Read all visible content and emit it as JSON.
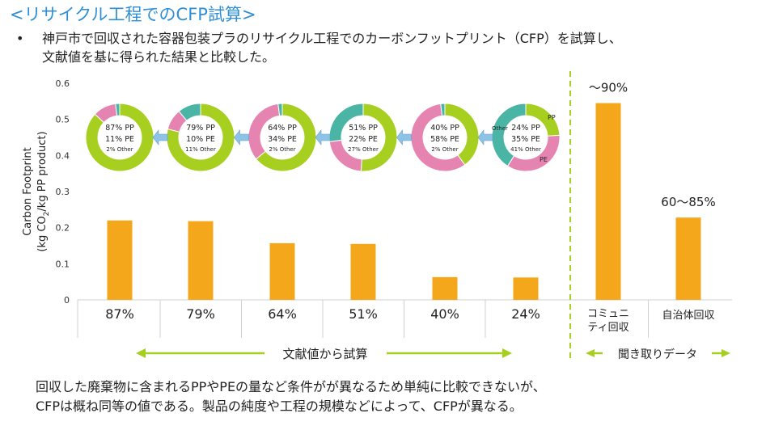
{
  "slide": {
    "title": "<リサイクル工程でのCFP試算>",
    "bullet": "•",
    "intro_line1": "神戸市で回収された容器包装プラのリサイクル工程でのカーボンフットプリント（CFP）を試算し、",
    "intro_line2": "文献値を基に得られた結果と比較した。",
    "conclusion_line1": "回収した廃棄物に含まれるPPやPEの量など条件がが異なるため単純に比較できないが、",
    "conclusion_line2": "CFPは概ね同等の値である。製品の純度や工程の規模などによって、CFPが異なる。"
  },
  "colors": {
    "title": "#2f8fd6",
    "bar": "#f5a71c",
    "pp": "#a6cf1f",
    "pe": "#e684b1",
    "other": "#4ab5a5",
    "arrow_blue": "#8ec3e6",
    "separator": "#a6cf1f",
    "range_arrow": "#a6cf1f"
  },
  "chart_data": {
    "type": "bar",
    "ylabel_line1": "Carbon Footprint",
    "ylabel_line2_prefix": "(kg CO",
    "ylabel_line2_sub": "2",
    "ylabel_line2_suffix": "/kg PP product)",
    "ylim": [
      0,
      0.6
    ],
    "yticks": [
      "0",
      "0.1",
      "0.2",
      "0.3",
      "0.4",
      "0.5",
      "0.6"
    ],
    "categories": [
      "87%",
      "79%",
      "64%",
      "51%",
      "40%",
      "24%",
      "コミュニ\nティ回収",
      "自治体回収"
    ],
    "values": [
      0.22,
      0.218,
      0.157,
      0.155,
      0.063,
      0.062,
      0.545,
      0.228
    ],
    "group_literature_label": "文献値から試算",
    "group_interview_label": "聞き取りデータ",
    "annotations": [
      {
        "category": "コミュニ\nティ回収",
        "text": "～90%"
      },
      {
        "category": "自治体回収",
        "text": "60～85%"
      }
    ],
    "donuts": [
      {
        "pp": 87,
        "pe": 11,
        "other": 2,
        "lines": [
          "87% PP",
          "11% PE",
          "2% Other"
        ]
      },
      {
        "pp": 79,
        "pe": 10,
        "other": 11,
        "lines": [
          "79% PP",
          "10% PE",
          "11% Other"
        ]
      },
      {
        "pp": 64,
        "pe": 34,
        "other": 2,
        "lines": [
          "64% PP",
          "34% PE",
          "2% Other"
        ]
      },
      {
        "pp": 51,
        "pe": 22,
        "other": 27,
        "lines": [
          "51% PP",
          "22% PE",
          "27% Other"
        ]
      },
      {
        "pp": 40,
        "pe": 58,
        "other": 2,
        "lines": [
          "40% PP",
          "58% PE",
          "2% Other"
        ]
      },
      {
        "pp": 24,
        "pe": 35,
        "other": 41,
        "lines": [
          "24% PP",
          "35% PE",
          "41% Other"
        ]
      }
    ],
    "legend_pp": "PP",
    "legend_pe": "PE",
    "legend_other": "Other"
  }
}
